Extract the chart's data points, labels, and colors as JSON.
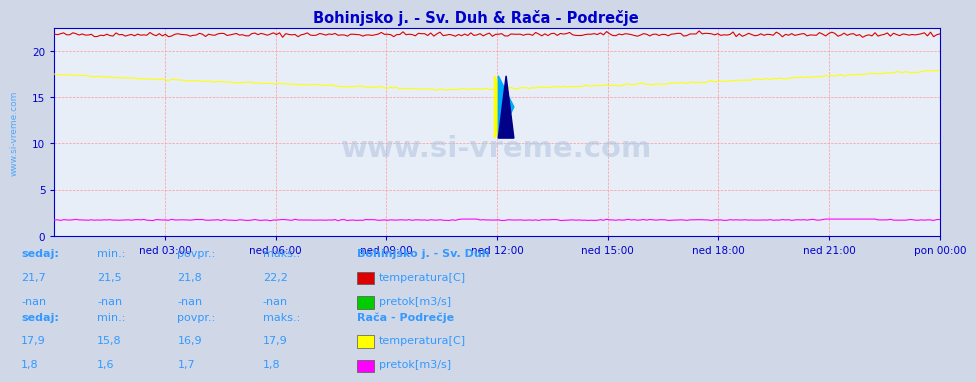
{
  "title": "Bohinjsko j. - Sv. Duh & Rača - Podrečje",
  "title_color": "#0000cc",
  "bg_color": "#d0d8e8",
  "plot_bg_color": "#e8eef8",
  "grid_color": "#ff9999",
  "axis_color": "#0000cc",
  "watermark": "www.si-vreme.com",
  "xlabel_ticks": [
    "ned 03:00",
    "ned 06:00",
    "ned 09:00",
    "ned 12:00",
    "ned 15:00",
    "ned 18:00",
    "ned 21:00",
    "pon 00:00"
  ],
  "ylim": [
    0,
    22.5
  ],
  "yticks": [
    0,
    5,
    10,
    15,
    20
  ],
  "n_points": 288,
  "color_bohinjsko_temp": "#dd0000",
  "color_bohinjsko_pretok": "#00cc00",
  "color_raca_temp": "#ffff00",
  "color_raca_pretok": "#ff00ff",
  "table_color": "#3399ff",
  "left_label": "www.si-vreme.com",
  "left_label_color": "#3399ff",
  "block1_header": "Bohinjsko j. - Sv. Duh",
  "block1_row1_vals": [
    "21,7",
    "21,5",
    "21,8",
    "22,2"
  ],
  "block1_row1_label": "temperatura[C]",
  "block1_row2_vals": [
    "-nan",
    "-nan",
    "-nan",
    "-nan"
  ],
  "block1_row2_label": "pretok[m3/s]",
  "block2_header": "Rača - Podrečje",
  "block2_row1_vals": [
    "17,9",
    "15,8",
    "16,9",
    "17,9"
  ],
  "block2_row1_label": "temperatura[C]",
  "block2_row2_vals": [
    "1,8",
    "1,6",
    "1,7",
    "1,8"
  ],
  "block2_row2_label": "pretok[m3/s]",
  "col_headers": [
    "sedaj:",
    "min.:",
    "povpr.:",
    "maks.:"
  ]
}
